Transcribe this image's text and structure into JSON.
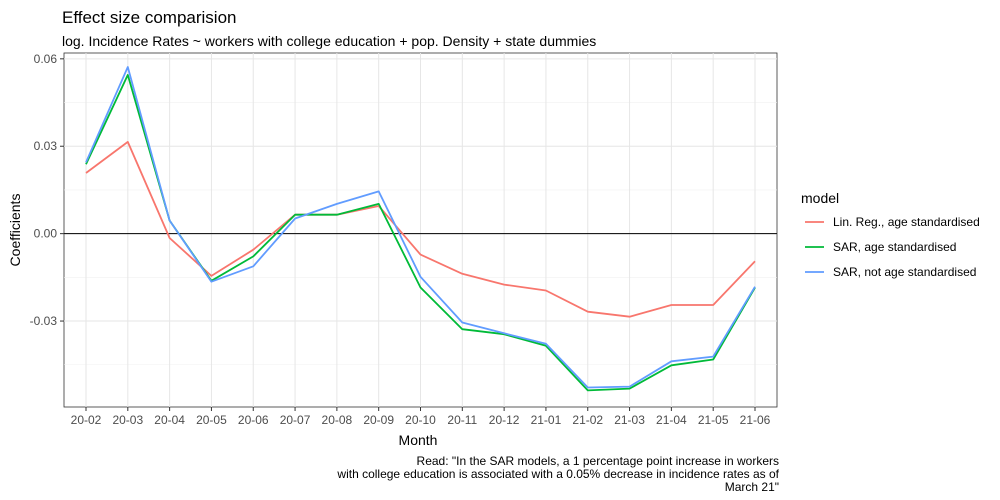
{
  "chart_data": {
    "type": "line",
    "title": "Effect size comparision",
    "subtitle": "log. Incidence Rates ~ workers with college education + pop. Density + state dummies",
    "xlabel": "Month",
    "ylabel": "Coefficients",
    "categories": [
      "20-02",
      "20-03",
      "20-04",
      "20-05",
      "20-06",
      "20-07",
      "20-08",
      "20-09",
      "20-10",
      "20-11",
      "20-12",
      "21-01",
      "21-02",
      "21-03",
      "21-04",
      "21-05",
      "21-06"
    ],
    "y_ticks": [
      -0.03,
      0.0,
      0.03,
      0.06
    ],
    "y_tick_labels": [
      "-0.03",
      "0.00",
      "0.03",
      "0.06"
    ],
    "ylim": [
      -0.0595,
      0.062
    ],
    "reference_line_y": 0,
    "grid": true,
    "legend": {
      "title": "model",
      "position": "right"
    },
    "series": [
      {
        "name": "Lin. Reg., age standardised",
        "color": "#F8766D",
        "values": [
          0.0208,
          0.0315,
          -0.0015,
          -0.0145,
          -0.0055,
          0.0065,
          0.0065,
          0.0095,
          -0.0072,
          -0.0138,
          -0.0175,
          -0.0195,
          -0.0268,
          -0.0285,
          -0.0245,
          -0.0245,
          -0.0095
        ]
      },
      {
        "name": "SAR, age standardised",
        "color": "#00BA38",
        "values": [
          0.0238,
          0.0545,
          0.0045,
          -0.0162,
          -0.0078,
          0.0065,
          0.0065,
          0.0102,
          -0.0185,
          -0.0328,
          -0.0345,
          -0.0385,
          -0.0538,
          -0.0532,
          -0.0452,
          -0.0432,
          -0.0185
        ]
      },
      {
        "name": "SAR, not age standardised",
        "color": "#619CFF",
        "values": [
          0.0245,
          0.0572,
          0.0045,
          -0.0165,
          -0.0112,
          0.0052,
          0.0102,
          0.0145,
          -0.0148,
          -0.0305,
          -0.0342,
          -0.0378,
          -0.0528,
          -0.0525,
          -0.0438,
          -0.0422,
          -0.0182
        ]
      }
    ],
    "caption": [
      "Read: \"In the SAR models, a 1 percentage point increase in workers",
      "with college education is associated with a 0.05% decrease in incidence rates as of",
      "March 21\""
    ]
  }
}
